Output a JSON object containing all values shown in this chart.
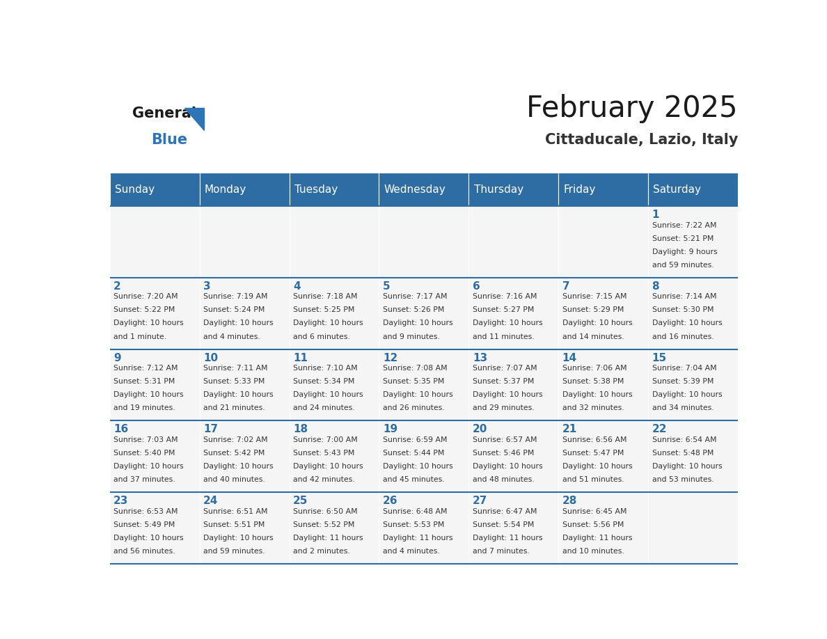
{
  "title": "February 2025",
  "subtitle": "Cittaducale, Lazio, Italy",
  "header_bg": "#2E6DA4",
  "header_text_color": "#FFFFFF",
  "cell_bg": "#F5F5F5",
  "cell_border_color": "#2E6DA4",
  "day_number_color": "#2E6DA4",
  "info_text_color": "#333333",
  "logo_general_color": "#1a1a1a",
  "logo_blue_color": "#2E75B6",
  "days_of_week": [
    "Sunday",
    "Monday",
    "Tuesday",
    "Wednesday",
    "Thursday",
    "Friday",
    "Saturday"
  ],
  "calendar": [
    [
      null,
      null,
      null,
      null,
      null,
      null,
      {
        "day": 1,
        "sunrise": "7:22 AM",
        "sunset": "5:21 PM",
        "daylight_line1": "Daylight: 9 hours",
        "daylight_line2": "and 59 minutes."
      }
    ],
    [
      {
        "day": 2,
        "sunrise": "7:20 AM",
        "sunset": "5:22 PM",
        "daylight_line1": "Daylight: 10 hours",
        "daylight_line2": "and 1 minute."
      },
      {
        "day": 3,
        "sunrise": "7:19 AM",
        "sunset": "5:24 PM",
        "daylight_line1": "Daylight: 10 hours",
        "daylight_line2": "and 4 minutes."
      },
      {
        "day": 4,
        "sunrise": "7:18 AM",
        "sunset": "5:25 PM",
        "daylight_line1": "Daylight: 10 hours",
        "daylight_line2": "and 6 minutes."
      },
      {
        "day": 5,
        "sunrise": "7:17 AM",
        "sunset": "5:26 PM",
        "daylight_line1": "Daylight: 10 hours",
        "daylight_line2": "and 9 minutes."
      },
      {
        "day": 6,
        "sunrise": "7:16 AM",
        "sunset": "5:27 PM",
        "daylight_line1": "Daylight: 10 hours",
        "daylight_line2": "and 11 minutes."
      },
      {
        "day": 7,
        "sunrise": "7:15 AM",
        "sunset": "5:29 PM",
        "daylight_line1": "Daylight: 10 hours",
        "daylight_line2": "and 14 minutes."
      },
      {
        "day": 8,
        "sunrise": "7:14 AM",
        "sunset": "5:30 PM",
        "daylight_line1": "Daylight: 10 hours",
        "daylight_line2": "and 16 minutes."
      }
    ],
    [
      {
        "day": 9,
        "sunrise": "7:12 AM",
        "sunset": "5:31 PM",
        "daylight_line1": "Daylight: 10 hours",
        "daylight_line2": "and 19 minutes."
      },
      {
        "day": 10,
        "sunrise": "7:11 AM",
        "sunset": "5:33 PM",
        "daylight_line1": "Daylight: 10 hours",
        "daylight_line2": "and 21 minutes."
      },
      {
        "day": 11,
        "sunrise": "7:10 AM",
        "sunset": "5:34 PM",
        "daylight_line1": "Daylight: 10 hours",
        "daylight_line2": "and 24 minutes."
      },
      {
        "day": 12,
        "sunrise": "7:08 AM",
        "sunset": "5:35 PM",
        "daylight_line1": "Daylight: 10 hours",
        "daylight_line2": "and 26 minutes."
      },
      {
        "day": 13,
        "sunrise": "7:07 AM",
        "sunset": "5:37 PM",
        "daylight_line1": "Daylight: 10 hours",
        "daylight_line2": "and 29 minutes."
      },
      {
        "day": 14,
        "sunrise": "7:06 AM",
        "sunset": "5:38 PM",
        "daylight_line1": "Daylight: 10 hours",
        "daylight_line2": "and 32 minutes."
      },
      {
        "day": 15,
        "sunrise": "7:04 AM",
        "sunset": "5:39 PM",
        "daylight_line1": "Daylight: 10 hours",
        "daylight_line2": "and 34 minutes."
      }
    ],
    [
      {
        "day": 16,
        "sunrise": "7:03 AM",
        "sunset": "5:40 PM",
        "daylight_line1": "Daylight: 10 hours",
        "daylight_line2": "and 37 minutes."
      },
      {
        "day": 17,
        "sunrise": "7:02 AM",
        "sunset": "5:42 PM",
        "daylight_line1": "Daylight: 10 hours",
        "daylight_line2": "and 40 minutes."
      },
      {
        "day": 18,
        "sunrise": "7:00 AM",
        "sunset": "5:43 PM",
        "daylight_line1": "Daylight: 10 hours",
        "daylight_line2": "and 42 minutes."
      },
      {
        "day": 19,
        "sunrise": "6:59 AM",
        "sunset": "5:44 PM",
        "daylight_line1": "Daylight: 10 hours",
        "daylight_line2": "and 45 minutes."
      },
      {
        "day": 20,
        "sunrise": "6:57 AM",
        "sunset": "5:46 PM",
        "daylight_line1": "Daylight: 10 hours",
        "daylight_line2": "and 48 minutes."
      },
      {
        "day": 21,
        "sunrise": "6:56 AM",
        "sunset": "5:47 PM",
        "daylight_line1": "Daylight: 10 hours",
        "daylight_line2": "and 51 minutes."
      },
      {
        "day": 22,
        "sunrise": "6:54 AM",
        "sunset": "5:48 PM",
        "daylight_line1": "Daylight: 10 hours",
        "daylight_line2": "and 53 minutes."
      }
    ],
    [
      {
        "day": 23,
        "sunrise": "6:53 AM",
        "sunset": "5:49 PM",
        "daylight_line1": "Daylight: 10 hours",
        "daylight_line2": "and 56 minutes."
      },
      {
        "day": 24,
        "sunrise": "6:51 AM",
        "sunset": "5:51 PM",
        "daylight_line1": "Daylight: 10 hours",
        "daylight_line2": "and 59 minutes."
      },
      {
        "day": 25,
        "sunrise": "6:50 AM",
        "sunset": "5:52 PM",
        "daylight_line1": "Daylight: 11 hours",
        "daylight_line2": "and 2 minutes."
      },
      {
        "day": 26,
        "sunrise": "6:48 AM",
        "sunset": "5:53 PM",
        "daylight_line1": "Daylight: 11 hours",
        "daylight_line2": "and 4 minutes."
      },
      {
        "day": 27,
        "sunrise": "6:47 AM",
        "sunset": "5:54 PM",
        "daylight_line1": "Daylight: 11 hours",
        "daylight_line2": "and 7 minutes."
      },
      {
        "day": 28,
        "sunrise": "6:45 AM",
        "sunset": "5:56 PM",
        "daylight_line1": "Daylight: 11 hours",
        "daylight_line2": "and 10 minutes."
      },
      null
    ]
  ]
}
